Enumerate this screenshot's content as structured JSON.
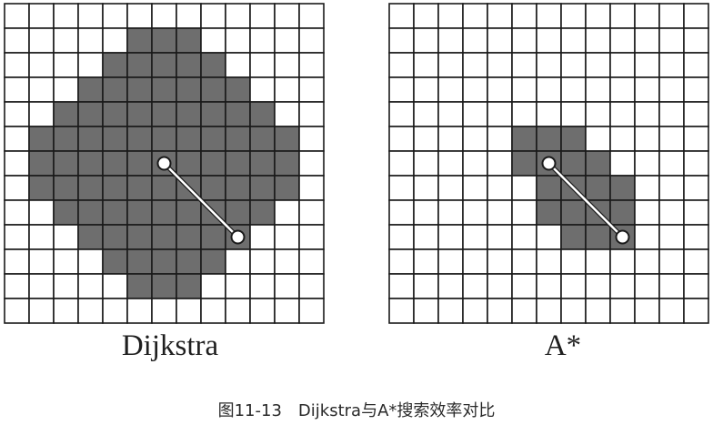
{
  "figure": {
    "caption": "图11-13　Dijkstra与A*搜索效率对比",
    "colors": {
      "cell_fill": "#ffffff",
      "explored_fill": "#6e6e6e",
      "grid_line": "#1a1a1a",
      "path_line": "#ffffff",
      "node_fill": "#ffffff",
      "node_stroke": "#1a1a1a"
    },
    "panels": [
      {
        "id": "dijkstra",
        "label": "Dijkstra",
        "grid": {
          "cols": 13,
          "rows": 13
        },
        "explored_rows": [
          [],
          [
            5,
            7
          ],
          [
            4,
            8
          ],
          [
            3,
            9
          ],
          [
            2,
            10
          ],
          [
            1,
            11
          ],
          [
            1,
            11
          ],
          [
            1,
            11
          ],
          [
            2,
            10
          ],
          [
            3,
            9
          ],
          [
            4,
            8
          ],
          [
            5,
            7
          ],
          []
        ],
        "start_cell": [
          6,
          6
        ],
        "goal_cell": [
          9,
          9
        ]
      },
      {
        "id": "astar",
        "label": "A*",
        "grid": {
          "cols": 13,
          "rows": 13
        },
        "explored_rows": [
          [],
          [],
          [],
          [],
          [],
          [
            5,
            7
          ],
          [
            5,
            8
          ],
          [
            6,
            9
          ],
          [
            6,
            9
          ],
          [
            7,
            9
          ],
          [],
          [],
          []
        ],
        "start_cell": [
          6,
          6
        ],
        "goal_cell": [
          9,
          9
        ]
      }
    ]
  }
}
